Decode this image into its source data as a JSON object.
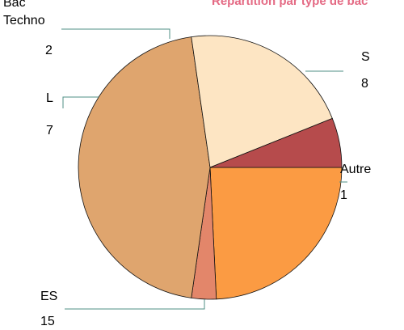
{
  "chart_data": {
    "type": "pie",
    "title": "Répartition par type de bac",
    "slices": [
      {
        "name": "S",
        "value": 8,
        "color": "#fb9b43"
      },
      {
        "name": "Autre",
        "value": 1,
        "color": "#e3866a"
      },
      {
        "name": "ES",
        "value": 15,
        "color": "#dfa56e"
      },
      {
        "name": "L",
        "value": 7,
        "color": "#fde5c3"
      },
      {
        "name": "Bac Techno",
        "value": 2,
        "color": "#b64b4c"
      }
    ],
    "start_angle_deg": 0,
    "direction": "clockwise",
    "legend": "none",
    "data_labels": "outside with leader lines"
  }
}
